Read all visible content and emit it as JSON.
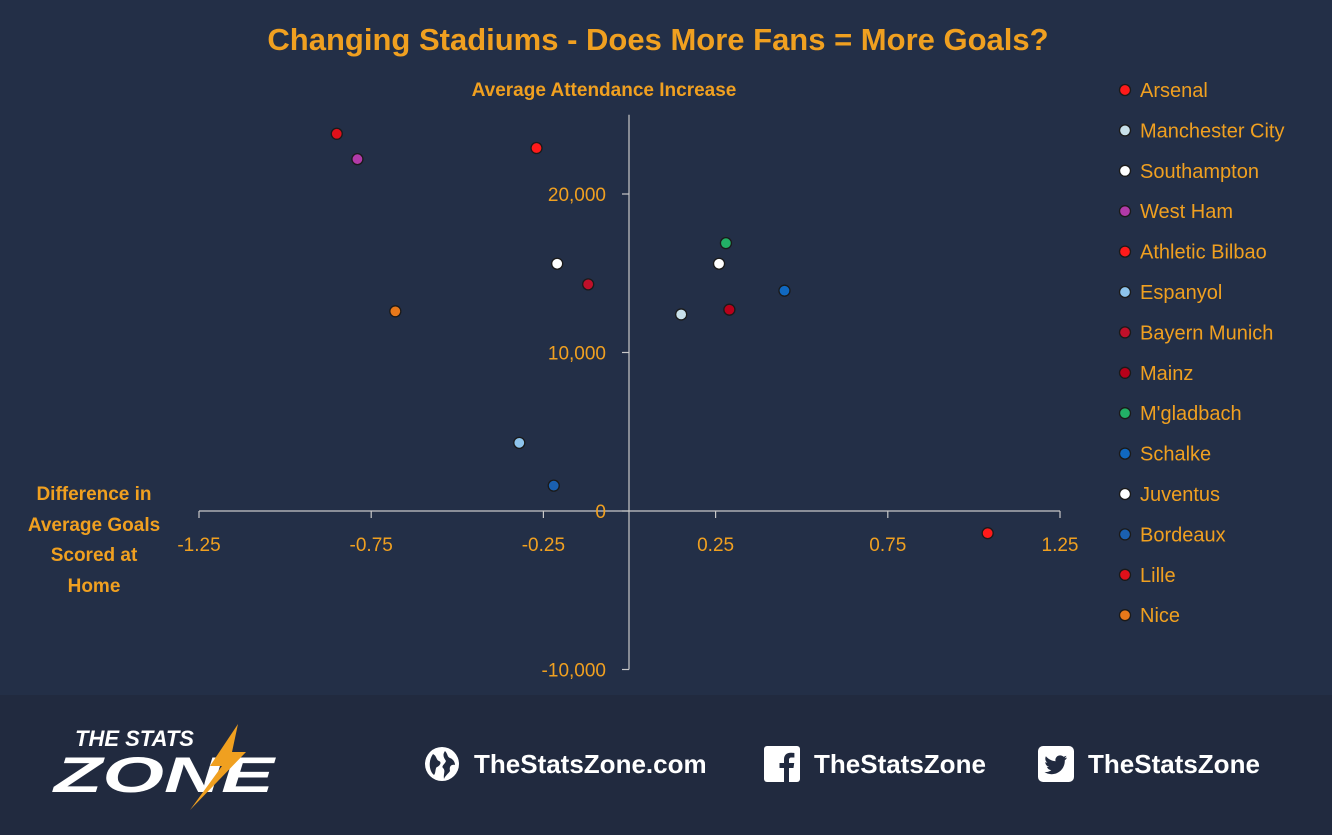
{
  "chart_data": {
    "type": "scatter",
    "title": "Changing Stadiums - Does More Fans = More Goals?",
    "subtitle": "Average Attendance Increase",
    "xlabel": "Difference in Average Goals Scored at Home",
    "xlabel_lines": [
      "Difference in",
      "Average Goals",
      "Scored at",
      "Home"
    ],
    "xlim": [
      -1.25,
      1.25
    ],
    "ylim": [
      -10000,
      25000
    ],
    "x_ticks": [
      -1.25,
      -0.75,
      -0.25,
      0.25,
      0.75,
      1.25
    ],
    "x_tick_labels": [
      "-1.25",
      "-0.75",
      "-0.25",
      "0.25",
      "0.75",
      "1.25"
    ],
    "y_ticks": [
      -10000,
      0,
      10000,
      20000
    ],
    "y_tick_labels": [
      "-10,000",
      "0",
      "10,000",
      "20,000"
    ],
    "legend_position": "right",
    "grid": false,
    "series": [
      {
        "name": "Arsenal",
        "color": "#ff1a1a",
        "x": -0.27,
        "y": 22900
      },
      {
        "name": "Manchester City",
        "color": "#c8e0ea",
        "x": 0.15,
        "y": 12400
      },
      {
        "name": "Southampton",
        "color": "#ffffff",
        "x": -0.21,
        "y": 15600
      },
      {
        "name": "West Ham",
        "color": "#b23aa8",
        "x": -0.79,
        "y": 22200
      },
      {
        "name": "Athletic Bilbao",
        "color": "#ff1a1a",
        "x": 1.04,
        "y": -1400
      },
      {
        "name": "Espanyol",
        "color": "#8ec4ec",
        "x": -0.32,
        "y": 4300
      },
      {
        "name": "Bayern Munich",
        "color": "#c0102a",
        "x": -0.12,
        "y": 14300
      },
      {
        "name": "Mainz",
        "color": "#b8001a",
        "x": 0.29,
        "y": 12700
      },
      {
        "name": "M'gladbach",
        "color": "#22b066",
        "x": 0.28,
        "y": 16900
      },
      {
        "name": "Schalke",
        "color": "#1068c0",
        "x": 0.45,
        "y": 13900
      },
      {
        "name": "Juventus",
        "color": "#ffffff",
        "x": 0.26,
        "y": 15600
      },
      {
        "name": "Bordeaux",
        "color": "#1a60b0",
        "x": -0.22,
        "y": 1600
      },
      {
        "name": "Lille",
        "color": "#e0101a",
        "x": -0.85,
        "y": 23800
      },
      {
        "name": "Nice",
        "color": "#e8781a",
        "x": -0.68,
        "y": 12600
      }
    ]
  },
  "footer": {
    "logo_line1": "THE STATS",
    "logo_line2": "ZONE",
    "website": "TheStatsZone.com",
    "facebook": "TheStatsZone",
    "twitter": "TheStatsZone"
  },
  "icons": [
    "globe-icon",
    "facebook-icon",
    "twitter-icon"
  ]
}
